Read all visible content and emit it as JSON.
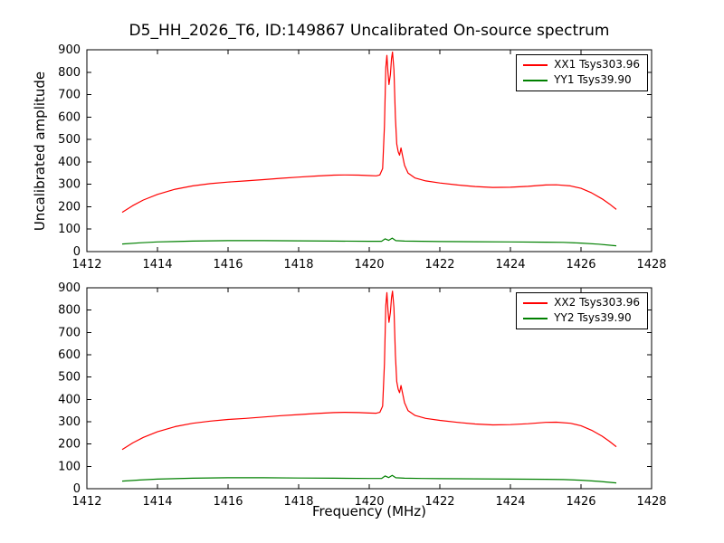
{
  "figure": {
    "title": "D5_HH_2026_T6, ID:149867 Uncalibrated On-source spectrum",
    "xlabel": "Frequency (MHz)",
    "ylabel": "Uncalibrated amplitude"
  },
  "chart_data": {
    "type": "line",
    "title": "D5_HH_2026_T6, ID:149867 Uncalibrated On-source spectrum",
    "xlabel": "Frequency (MHz)",
    "ylabel": "Uncalibrated amplitude",
    "xlim": [
      1412,
      1428
    ],
    "ylim": [
      0,
      900
    ],
    "x_ticks": [
      1412,
      1414,
      1416,
      1418,
      1420,
      1422,
      1424,
      1426,
      1428
    ],
    "y_ticks": [
      0,
      100,
      200,
      300,
      400,
      500,
      600,
      700,
      800,
      900
    ],
    "grid": false,
    "legend_position": "upper right",
    "charts": [
      {
        "name": "top-subplot",
        "series": [
          {
            "name": "XX1",
            "label": "XX1 Tsys303.96",
            "color": "#ff0000",
            "points": [
              [
                1413.0,
                175
              ],
              [
                1413.3,
                205
              ],
              [
                1413.6,
                230
              ],
              [
                1414.0,
                255
              ],
              [
                1414.5,
                278
              ],
              [
                1415.0,
                293
              ],
              [
                1415.5,
                303
              ],
              [
                1416.0,
                310
              ],
              [
                1416.5,
                315
              ],
              [
                1417.0,
                321
              ],
              [
                1417.5,
                327
              ],
              [
                1418.0,
                332
              ],
              [
                1418.5,
                337
              ],
              [
                1419.0,
                341
              ],
              [
                1419.3,
                342
              ],
              [
                1419.7,
                341
              ],
              [
                1420.0,
                339
              ],
              [
                1420.2,
                338
              ],
              [
                1420.3,
                342
              ],
              [
                1420.38,
                370
              ],
              [
                1420.43,
                560
              ],
              [
                1420.47,
                820
              ],
              [
                1420.5,
                875
              ],
              [
                1420.53,
                800
              ],
              [
                1420.56,
                745
              ],
              [
                1420.6,
                790
              ],
              [
                1420.63,
                860
              ],
              [
                1420.66,
                890
              ],
              [
                1420.7,
                810
              ],
              [
                1420.74,
                600
              ],
              [
                1420.78,
                480
              ],
              [
                1420.82,
                445
              ],
              [
                1420.86,
                430
              ],
              [
                1420.9,
                462
              ],
              [
                1420.94,
                430
              ],
              [
                1421.0,
                385
              ],
              [
                1421.1,
                350
              ],
              [
                1421.3,
                328
              ],
              [
                1421.6,
                315
              ],
              [
                1422.0,
                306
              ],
              [
                1422.5,
                297
              ],
              [
                1423.0,
                290
              ],
              [
                1423.5,
                286
              ],
              [
                1424.0,
                287
              ],
              [
                1424.5,
                291
              ],
              [
                1425.0,
                297
              ],
              [
                1425.3,
                298
              ],
              [
                1425.7,
                293
              ],
              [
                1426.0,
                282
              ],
              [
                1426.3,
                262
              ],
              [
                1426.6,
                235
              ],
              [
                1426.8,
                213
              ],
              [
                1427.0,
                188
              ]
            ]
          },
          {
            "name": "YY1",
            "label": "YY1 Tsys39.90",
            "color": "#008000",
            "points": [
              [
                1413.0,
                34
              ],
              [
                1413.5,
                39
              ],
              [
                1414.0,
                43
              ],
              [
                1414.5,
                45
              ],
              [
                1415.0,
                47
              ],
              [
                1416.0,
                49
              ],
              [
                1417.0,
                49
              ],
              [
                1418.0,
                48
              ],
              [
                1419.0,
                47
              ],
              [
                1420.0,
                46
              ],
              [
                1420.35,
                46
              ],
              [
                1420.45,
                57
              ],
              [
                1420.55,
                50
              ],
              [
                1420.65,
                60
              ],
              [
                1420.75,
                49
              ],
              [
                1421.0,
                47
              ],
              [
                1421.5,
                46
              ],
              [
                1422.0,
                45
              ],
              [
                1423.0,
                44
              ],
              [
                1424.0,
                43
              ],
              [
                1425.0,
                42
              ],
              [
                1425.5,
                41
              ],
              [
                1426.0,
                38
              ],
              [
                1426.5,
                33
              ],
              [
                1427.0,
                26
              ]
            ]
          }
        ]
      },
      {
        "name": "bottom-subplot",
        "series": [
          {
            "name": "XX2",
            "label": "XX2 Tsys303.96",
            "color": "#ff0000",
            "points": [
              [
                1413.0,
                175
              ],
              [
                1413.3,
                205
              ],
              [
                1413.6,
                230
              ],
              [
                1414.0,
                255
              ],
              [
                1414.5,
                278
              ],
              [
                1415.0,
                293
              ],
              [
                1415.5,
                303
              ],
              [
                1416.0,
                310
              ],
              [
                1416.5,
                315
              ],
              [
                1417.0,
                321
              ],
              [
                1417.5,
                327
              ],
              [
                1418.0,
                332
              ],
              [
                1418.5,
                337
              ],
              [
                1419.0,
                341
              ],
              [
                1419.3,
                342
              ],
              [
                1419.7,
                341
              ],
              [
                1420.0,
                339
              ],
              [
                1420.2,
                338
              ],
              [
                1420.3,
                342
              ],
              [
                1420.38,
                370
              ],
              [
                1420.43,
                560
              ],
              [
                1420.47,
                820
              ],
              [
                1420.5,
                878
              ],
              [
                1420.53,
                800
              ],
              [
                1420.56,
                745
              ],
              [
                1420.6,
                790
              ],
              [
                1420.63,
                855
              ],
              [
                1420.66,
                885
              ],
              [
                1420.7,
                810
              ],
              [
                1420.74,
                600
              ],
              [
                1420.78,
                480
              ],
              [
                1420.82,
                445
              ],
              [
                1420.86,
                430
              ],
              [
                1420.9,
                462
              ],
              [
                1420.94,
                430
              ],
              [
                1421.0,
                385
              ],
              [
                1421.1,
                350
              ],
              [
                1421.3,
                328
              ],
              [
                1421.6,
                315
              ],
              [
                1422.0,
                306
              ],
              [
                1422.5,
                297
              ],
              [
                1423.0,
                290
              ],
              [
                1423.5,
                286
              ],
              [
                1424.0,
                287
              ],
              [
                1424.5,
                291
              ],
              [
                1425.0,
                297
              ],
              [
                1425.3,
                298
              ],
              [
                1425.7,
                293
              ],
              [
                1426.0,
                282
              ],
              [
                1426.3,
                262
              ],
              [
                1426.6,
                235
              ],
              [
                1426.8,
                213
              ],
              [
                1427.0,
                188
              ]
            ]
          },
          {
            "name": "YY2",
            "label": "YY2 Tsys39.90",
            "color": "#008000",
            "points": [
              [
                1413.0,
                34
              ],
              [
                1413.5,
                39
              ],
              [
                1414.0,
                43
              ],
              [
                1414.5,
                45
              ],
              [
                1415.0,
                47
              ],
              [
                1416.0,
                49
              ],
              [
                1417.0,
                49
              ],
              [
                1418.0,
                48
              ],
              [
                1419.0,
                47
              ],
              [
                1420.0,
                46
              ],
              [
                1420.35,
                46
              ],
              [
                1420.45,
                57
              ],
              [
                1420.55,
                50
              ],
              [
                1420.65,
                60
              ],
              [
                1420.75,
                49
              ],
              [
                1421.0,
                47
              ],
              [
                1421.5,
                46
              ],
              [
                1422.0,
                45
              ],
              [
                1423.0,
                44
              ],
              [
                1424.0,
                43
              ],
              [
                1425.0,
                42
              ],
              [
                1425.5,
                41
              ],
              [
                1426.0,
                38
              ],
              [
                1426.5,
                33
              ],
              [
                1427.0,
                26
              ]
            ]
          }
        ]
      }
    ]
  }
}
